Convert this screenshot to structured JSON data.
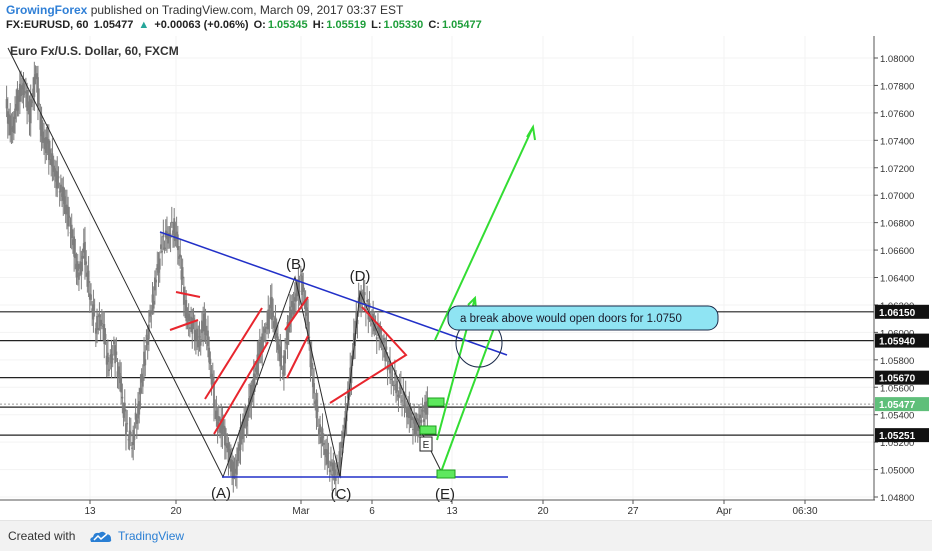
{
  "header": {
    "author": "GrowingForex",
    "published": "published on TradingView.com, March 09, 2017 03:37 EST",
    "symbol": "FX:EURUSD, 60",
    "last": "1.05477",
    "change_arrow": "▲",
    "change": "+0.00063 (+0.06%)",
    "open_label": "O:",
    "open": "1.05345",
    "high_label": "H:",
    "high": "1.05519",
    "low_label": "L:",
    "low": "1.05330",
    "close_label": "C:",
    "close": "1.05477"
  },
  "footer": {
    "created_with": "Created with",
    "brand": "TradingView",
    "logo_icon": "tradingview-cloud-icon"
  },
  "chart_data": {
    "type": "line",
    "title": "Euro Fx/U.S. Dollar, 60, FXCM",
    "y_ticks": [
      1.048,
      1.05,
      1.052,
      1.054,
      1.056,
      1.058,
      1.06,
      1.062,
      1.064,
      1.066,
      1.068,
      1.07,
      1.072,
      1.074,
      1.076,
      1.078,
      1.08
    ],
    "y_tick_labels": [
      "1.04800",
      "1.05000",
      "1.05200",
      "1.05400",
      "1.05600",
      "1.05800",
      "1.06000",
      "1.06200",
      "1.06400",
      "1.06600",
      "1.06800",
      "1.07000",
      "1.07200",
      "1.07400",
      "1.07600",
      "1.07800",
      "1.08000"
    ],
    "ylim": [
      1.0475,
      1.0815
    ],
    "x_tick_labels": [
      "13",
      "20",
      "Mar",
      "6",
      "13",
      "20",
      "27",
      "Apr",
      "06:30"
    ],
    "series": [
      {
        "values": [
          1.0765,
          1.0745,
          1.0772,
          1.078,
          1.0758,
          1.079,
          1.0742,
          1.0735,
          1.0718,
          1.0706,
          1.0692,
          1.067,
          1.064,
          1.066,
          1.0625,
          1.0605,
          1.061,
          1.0575,
          1.0588,
          1.0562,
          1.053,
          1.052,
          1.0546,
          1.058,
          1.0612,
          1.064,
          1.0665,
          1.0672,
          1.0678,
          1.065,
          1.061,
          1.0605,
          1.0592,
          1.061,
          1.0575,
          1.0535,
          1.053,
          1.051,
          1.0495,
          1.0525,
          1.054,
          1.056,
          1.0585,
          1.06,
          1.062,
          1.0595,
          1.0572,
          1.061,
          1.0625,
          1.0638,
          1.061,
          1.056,
          1.053,
          1.0515,
          1.05,
          1.0496,
          1.0525,
          1.056,
          1.0605,
          1.063,
          1.0618,
          1.0605,
          1.0598,
          1.0585,
          1.0568,
          1.056,
          1.0552,
          1.0538,
          1.053,
          1.0538,
          1.0547
        ]
      }
    ],
    "price_labels": [
      "1.06150",
      "1.05940",
      "1.05670",
      "1.05477",
      "1.05251"
    ],
    "horizontal_levels": [
      1.0615,
      1.0594,
      1.0567,
      1.05477,
      1.05251
    ],
    "wave_labels": [
      "(A)",
      "(B)",
      "(C)",
      "(D)",
      "(E)",
      "E"
    ],
    "annotation": "a break above would open doors for 1.0750",
    "colors": {
      "candles": "#7d7d7d",
      "trendline_blue": "#2230c8",
      "pattern_red": "#e8262e",
      "projection_green": "#33dd33",
      "callout_fill": "#8fe4f3",
      "last_price": "#5fbf7a"
    }
  }
}
